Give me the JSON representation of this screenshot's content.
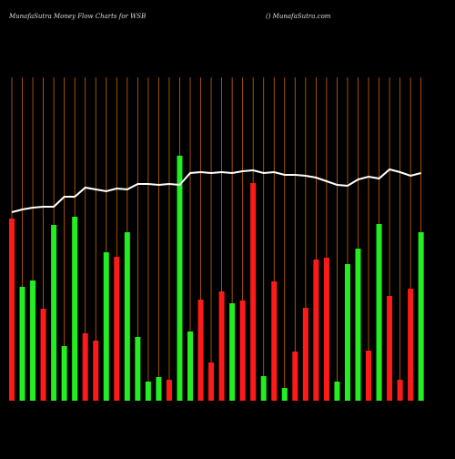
{
  "chart_data": {
    "type": "bar",
    "title": "MunafaSutra  Money Flow  Charts for WSB",
    "subtitle": "() MunafaSutra.com",
    "values": [
      200,
      125,
      132,
      101,
      193,
      60,
      202,
      74,
      66,
      163,
      158,
      185,
      70,
      21,
      26,
      23,
      269,
      76,
      111,
      42,
      120,
      107,
      110,
      239,
      27,
      131,
      14,
      54,
      102,
      155,
      157,
      21,
      150,
      167,
      55,
      194,
      115,
      23,
      123,
      185
    ],
    "colors": [
      "#ff1a1a",
      "#22ee22",
      "#22ee22",
      "#ff1a1a",
      "#22ee22",
      "#22ee22",
      "#22ee22",
      "#ff1a1a",
      "#ff1a1a",
      "#22ee22",
      "#ff1a1a",
      "#22ee22",
      "#22ee22",
      "#22ee22",
      "#22ee22",
      "#ff1a1a",
      "#22ee22",
      "#22ee22",
      "#ff1a1a",
      "#ff1a1a",
      "#ff1a1a",
      "#22ee22",
      "#ff1a1a",
      "#ff1a1a",
      "#22ee22",
      "#ff1a1a",
      "#22ee22",
      "#ff1a1a",
      "#ff1a1a",
      "#ff1a1a",
      "#ff1a1a",
      "#22ee22",
      "#22ee22",
      "#22ee22",
      "#ff1a1a",
      "#22ee22",
      "#ff1a1a",
      "#ff1a1a",
      "#ff1a1a",
      "#22ee22"
    ],
    "line": {
      "color": "#ffffff",
      "values": [
        207,
        210,
        212,
        213,
        213,
        224,
        224,
        234,
        232,
        230,
        233,
        232,
        238,
        238,
        237,
        238,
        237,
        250,
        251,
        250,
        251,
        250,
        252,
        253,
        250,
        251,
        248,
        248,
        247,
        245,
        241,
        237,
        236,
        243,
        246,
        244,
        254,
        251,
        247,
        250
      ]
    },
    "grid_color": "#cc6600",
    "ylim": [
      0,
      360
    ]
  }
}
